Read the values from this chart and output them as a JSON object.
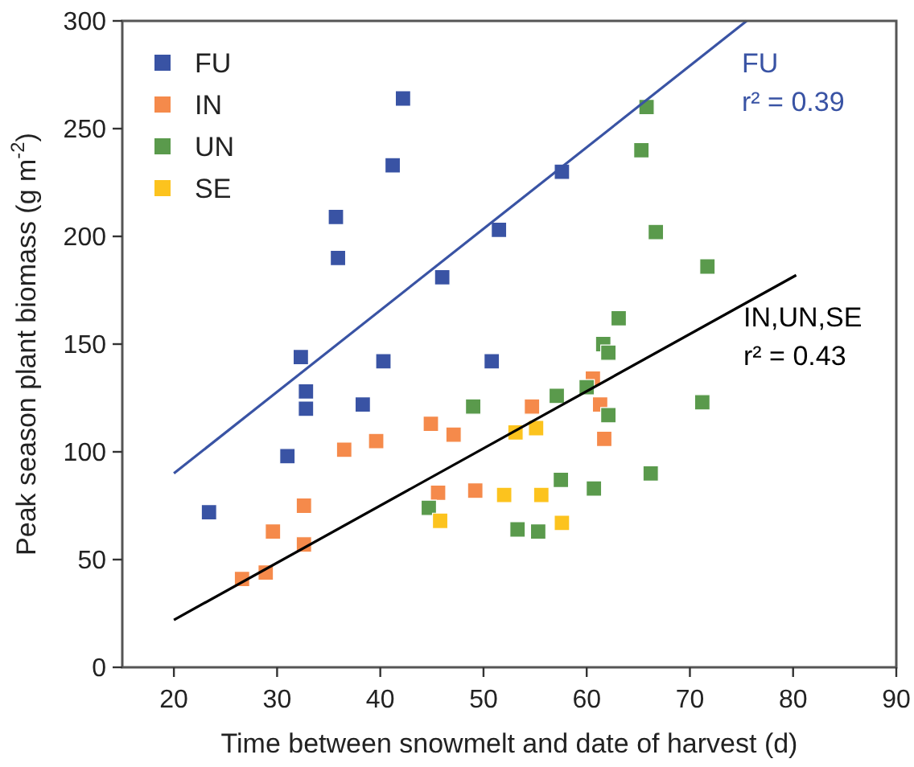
{
  "chart_data": {
    "type": "scatter",
    "xlabel": "Time between snowmelt and date of harvest (d)",
    "ylabel": "Peak season plant biomass (g m$^{-2}$)",
    "xlim": [
      15,
      90
    ],
    "ylim": [
      0,
      300
    ],
    "xticks": [
      20,
      30,
      40,
      50,
      60,
      70,
      80,
      90
    ],
    "yticks": [
      0,
      50,
      100,
      150,
      200,
      250,
      300
    ],
    "grid": false,
    "legend": "top left",
    "marker": "square",
    "series": [
      {
        "name": "FU",
        "color": "#3953a4",
        "x": [
          42.2,
          41.2,
          35.7,
          35.9,
          46.0,
          51.5,
          57.6,
          23.4,
          31.0,
          32.3,
          32.8,
          32.8,
          38.3,
          40.3,
          50.8
        ],
        "values": [
          264,
          233,
          209,
          190,
          181,
          203,
          230,
          72,
          98,
          144,
          128,
          120,
          122,
          142,
          142
        ]
      },
      {
        "name": "IN",
        "color": "#f58a4b",
        "x": [
          26.6,
          28.9,
          29.6,
          32.6,
          32.6,
          36.5,
          39.6,
          44.9,
          47.1,
          45.6,
          49.2,
          54.7,
          60.6,
          61.3,
          61.7
        ],
        "values": [
          41,
          44,
          63,
          75,
          57,
          101,
          105,
          113,
          108,
          81,
          82,
          121,
          134,
          122,
          106
        ]
      },
      {
        "name": "UN",
        "color": "#5a9a4c",
        "x": [
          49.0,
          44.7,
          53.3,
          55.3,
          57.5,
          57.1,
          60.0,
          60.7,
          61.6,
          62.1,
          62.1,
          63.1,
          71.2,
          66.2,
          65.8,
          65.3,
          66.7,
          71.7
        ],
        "values": [
          121,
          74,
          64,
          63,
          87,
          126,
          130,
          83,
          150,
          146,
          117,
          162,
          123,
          90,
          260,
          240,
          202,
          186
        ]
      },
      {
        "name": "SE",
        "color": "#fcc31e",
        "x": [
          45.8,
          52.0,
          53.1,
          55.1,
          55.6,
          57.6
        ],
        "values": [
          68,
          80,
          109,
          111,
          80,
          67
        ]
      },
      {
        "name": "FU",
        "type": "line",
        "marker": "none",
        "color": "#3953a4",
        "x": [
          20,
          75.5
        ],
        "values": [
          90,
          300
        ]
      },
      {
        "name": "IN,UN,SE",
        "type": "line",
        "marker": "none",
        "color": "#000000",
        "x": [
          20,
          80.3
        ],
        "values": [
          22,
          182
        ]
      }
    ],
    "annotations": [
      "r² = 0.39",
      "r² = 0.43"
    ]
  }
}
